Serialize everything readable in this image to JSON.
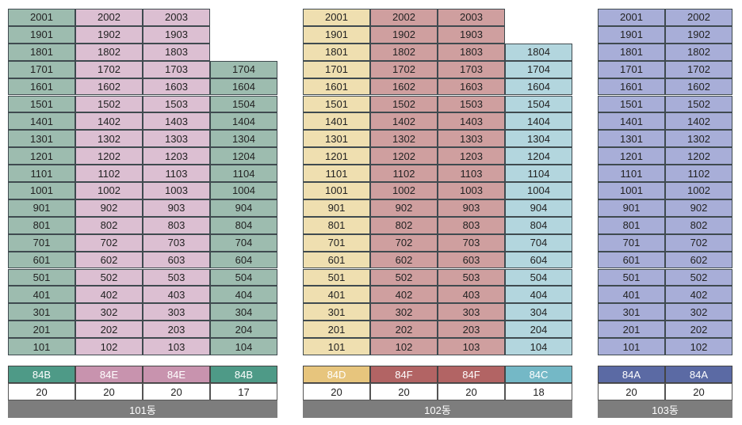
{
  "buildings": [
    {
      "name": "101동",
      "columns": [
        {
          "line": "01",
          "top_floor": 20,
          "type": "84B",
          "count": "20",
          "cell_color": "#9dbcaf",
          "type_color": "#4e9a87"
        },
        {
          "line": "02",
          "top_floor": 20,
          "type": "84E",
          "count": "20",
          "cell_color": "#dcbfd2",
          "type_color": "#c893ae"
        },
        {
          "line": "03",
          "top_floor": 20,
          "type": "84E",
          "count": "20",
          "cell_color": "#dcbfd2",
          "type_color": "#c893ae"
        },
        {
          "line": "04",
          "top_floor": 17,
          "type": "84B",
          "count": "17",
          "cell_color": "#9dbcaf",
          "type_color": "#4e9a87"
        }
      ]
    },
    {
      "name": "102동",
      "columns": [
        {
          "line": "01",
          "top_floor": 20,
          "type": "84D",
          "count": "20",
          "cell_color": "#efdfb0",
          "type_color": "#e7c57d"
        },
        {
          "line": "02",
          "top_floor": 20,
          "type": "84F",
          "count": "20",
          "cell_color": "#cf9f9f",
          "type_color": "#b26464"
        },
        {
          "line": "03",
          "top_floor": 20,
          "type": "84F",
          "count": "20",
          "cell_color": "#cf9f9f",
          "type_color": "#b26464"
        },
        {
          "line": "04",
          "top_floor": 18,
          "type": "84C",
          "count": "18",
          "cell_color": "#b3d6de",
          "type_color": "#74b8c6"
        }
      ]
    },
    {
      "name": "103동",
      "columns": [
        {
          "line": "01",
          "top_floor": 20,
          "type": "84A",
          "count": "20",
          "cell_color": "#a8aed8",
          "type_color": "#5b6aa4"
        },
        {
          "line": "02",
          "top_floor": 20,
          "type": "84A",
          "count": "20",
          "cell_color": "#a8aed8",
          "type_color": "#5b6aa4"
        }
      ]
    }
  ]
}
